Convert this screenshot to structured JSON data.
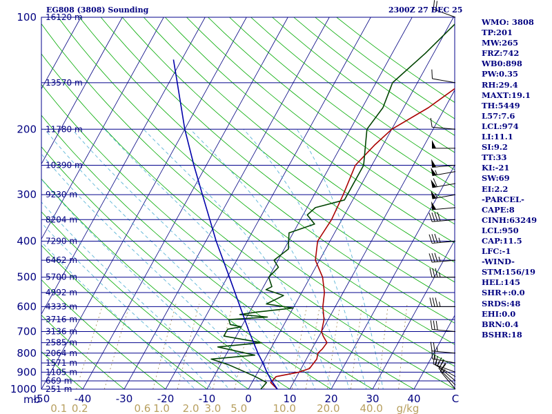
{
  "header": {
    "station_label": "EG808 (3808) Sounding",
    "valid_time": "2300Z 27 DEC 25"
  },
  "indices": [
    "WMO: 3808",
    "TP:201",
    "MW:265",
    "FRZ:742",
    "WB0:898",
    "PW:0.35",
    "RH:29.4",
    "MAXT:19.1",
    "TH:5449",
    "L57:7.6",
    "LCL:974",
    "LI:11.1",
    "SI:9.2",
    "TT:33",
    "KI:-21",
    "SW:69",
    "EI:2.2",
    "-PARCEL-",
    "CAPE:8",
    "CINH:63249",
    "LCL:950",
    "CAP:11.5",
    "LFC:-1",
    "-WIND-",
    "STM:156/19",
    "HEL:145",
    "SHR+:0.0",
    "SRDS:48",
    "EHI:0.0",
    "BRN:0.4",
    "BSHR:18"
  ],
  "colors": {
    "isobar": "#00008b",
    "isotherm": "#000080",
    "dry_adiabat": "#00aa00",
    "moist_adiabat": "#5ab4d6",
    "mixing_ratio": "#a08850",
    "temperature": "#aa0000",
    "dewpoint": "#004400",
    "parcel": "#0000aa",
    "text_blue": "#000080",
    "mixing_label": "#b8a060"
  },
  "chart_data": {
    "type": "line",
    "title": "EG808 (3808) Sounding",
    "xlabel": "C",
    "ylabel": "mb",
    "xlim": [
      -50,
      50
    ],
    "ylim": [
      1000,
      100
    ],
    "y_scale": "log",
    "pressure_levels": [
      {
        "p": 100,
        "label": "100",
        "height": "16120 m"
      },
      {
        "p": 150,
        "label": "",
        "height": "13570 m"
      },
      {
        "p": 200,
        "label": "200",
        "height": "11780 m"
      },
      {
        "p": 250,
        "label": "",
        "height": "10390 m"
      },
      {
        "p": 300,
        "label": "300",
        "height": "9230 m"
      },
      {
        "p": 350,
        "label": "",
        "height": "8204 m"
      },
      {
        "p": 400,
        "label": "400",
        "height": "7290 m"
      },
      {
        "p": 450,
        "label": "",
        "height": "6462 m"
      },
      {
        "p": 500,
        "label": "500",
        "height": "5700 m"
      },
      {
        "p": 550,
        "label": "",
        "height": "4992 m"
      },
      {
        "p": 600,
        "label": "600",
        "height": "4333 m"
      },
      {
        "p": 650,
        "label": "",
        "height": "3716 m"
      },
      {
        "p": 700,
        "label": "700",
        "height": "3136 m"
      },
      {
        "p": 750,
        "label": "",
        "height": "2585 m"
      },
      {
        "p": 800,
        "label": "800",
        "height": "2064 m"
      },
      {
        "p": 850,
        "label": "",
        "height": "1571 m"
      },
      {
        "p": 900,
        "label": "900",
        "height": "1105 m"
      },
      {
        "p": 950,
        "label": "",
        "height": "669 m"
      },
      {
        "p": 1000,
        "label": "1000",
        "height": "251 m"
      }
    ],
    "temperature_ticks": [
      {
        "t": -50,
        "label": "-50"
      },
      {
        "t": -40,
        "label": "-40"
      },
      {
        "t": -30,
        "label": "-30"
      },
      {
        "t": -20,
        "label": "-20"
      },
      {
        "t": -10,
        "label": "-10"
      },
      {
        "t": 0,
        "label": "0"
      },
      {
        "t": 10,
        "label": "10"
      },
      {
        "t": 20,
        "label": "20"
      },
      {
        "t": 30,
        "label": "30"
      },
      {
        "t": 40,
        "label": "40"
      },
      {
        "t": 50,
        "label": "C"
      }
    ],
    "mixing_ratio_labels": [
      {
        "t": -45.8,
        "label": "0.1"
      },
      {
        "t": -40.7,
        "label": "0.2"
      },
      {
        "t": -25.6,
        "label": "0.6"
      },
      {
        "t": -21,
        "label": "1.0"
      },
      {
        "t": -13.9,
        "label": "2.0"
      },
      {
        "t": -8.6,
        "label": "3.0"
      },
      {
        "t": -2.3,
        "label": "5.0"
      },
      {
        "t": 8.7,
        "label": "10.0"
      },
      {
        "t": 19.3,
        "label": "20.0"
      },
      {
        "t": 29.7,
        "label": "40.0"
      },
      {
        "t": 38.5,
        "label": "g/kg"
      }
    ],
    "series": [
      {
        "name": "temperature",
        "points": [
          [
            1000,
            7
          ],
          [
            960,
            4.5
          ],
          [
            925,
            5
          ],
          [
            900,
            10
          ],
          [
            880,
            12
          ],
          [
            830,
            12.5
          ],
          [
            800,
            12
          ],
          [
            780,
            12.5
          ],
          [
            750,
            12.8
          ],
          [
            720,
            11
          ],
          [
            700,
            10
          ],
          [
            650,
            9
          ],
          [
            600,
            7
          ],
          [
            550,
            5.5
          ],
          [
            500,
            3
          ],
          [
            450,
            -1
          ],
          [
            400,
            -3
          ],
          [
            350,
            -2.5
          ],
          [
            300,
            -3
          ],
          [
            250,
            -4
          ],
          [
            220,
            -2
          ],
          [
            200,
            0
          ],
          [
            175,
            6
          ],
          [
            150,
            11
          ],
          [
            125,
            16
          ],
          [
            100,
            20
          ]
        ]
      },
      {
        "name": "dewpoint",
        "points": [
          [
            1000,
            3
          ],
          [
            960,
            3.5
          ],
          [
            925,
            0
          ],
          [
            900,
            -3
          ],
          [
            860,
            -8
          ],
          [
            830,
            -13
          ],
          [
            810,
            -3
          ],
          [
            770,
            -13
          ],
          [
            750,
            -3
          ],
          [
            720,
            -13
          ],
          [
            690,
            -13
          ],
          [
            680,
            -10
          ],
          [
            670,
            -13
          ],
          [
            650,
            -14
          ],
          [
            640,
            -5
          ],
          [
            630,
            -12
          ],
          [
            620,
            -8
          ],
          [
            605,
            0
          ],
          [
            590,
            -7
          ],
          [
            560,
            -4
          ],
          [
            540,
            -9
          ],
          [
            530,
            -8
          ],
          [
            500,
            -10
          ],
          [
            470,
            -9
          ],
          [
            450,
            -11
          ],
          [
            420,
            -9
          ],
          [
            400,
            -10
          ],
          [
            380,
            -11
          ],
          [
            360,
            -6
          ],
          [
            340,
            -9
          ],
          [
            325,
            -8
          ],
          [
            310,
            -2
          ],
          [
            290,
            -2
          ],
          [
            250,
            -2
          ],
          [
            200,
            -6
          ],
          [
            175,
            -5
          ],
          [
            150,
            -6
          ],
          [
            125,
            -2
          ],
          [
            100,
            2
          ]
        ]
      },
      {
        "name": "parcel",
        "points": [
          [
            1000,
            7
          ],
          [
            950,
            4.5
          ],
          [
            900,
            2.2
          ],
          [
            850,
            0
          ],
          [
            800,
            -2.5
          ],
          [
            700,
            -7.5
          ],
          [
            600,
            -13
          ],
          [
            500,
            -19.5
          ],
          [
            400,
            -27.5
          ],
          [
            300,
            -37
          ],
          [
            250,
            -43
          ],
          [
            200,
            -50
          ],
          [
            150,
            -58
          ],
          [
            130,
            -62
          ]
        ]
      }
    ],
    "wind_barbs": [
      {
        "p": 1000,
        "dir": 320,
        "spd": 15
      },
      {
        "p": 975,
        "dir": 315,
        "spd": 20
      },
      {
        "p": 950,
        "dir": 310,
        "spd": 20
      },
      {
        "p": 925,
        "dir": 300,
        "spd": 15
      },
      {
        "p": 900,
        "dir": 290,
        "spd": 15
      },
      {
        "p": 850,
        "dir": 280,
        "spd": 20
      },
      {
        "p": 800,
        "dir": 275,
        "spd": 25
      },
      {
        "p": 700,
        "dir": 275,
        "spd": 30
      },
      {
        "p": 600,
        "dir": 270,
        "spd": 35
      },
      {
        "p": 500,
        "dir": 270,
        "spd": 35
      },
      {
        "p": 450,
        "dir": 265,
        "spd": 35
      },
      {
        "p": 400,
        "dir": 265,
        "spd": 35
      },
      {
        "p": 350,
        "dir": 265,
        "spd": 40
      },
      {
        "p": 325,
        "dir": 265,
        "spd": 50
      },
      {
        "p": 300,
        "dir": 260,
        "spd": 55
      },
      {
        "p": 280,
        "dir": 260,
        "spd": 60
      },
      {
        "p": 260,
        "dir": 260,
        "spd": 55
      },
      {
        "p": 250,
        "dir": 265,
        "spd": 50
      },
      {
        "p": 225,
        "dir": 270,
        "spd": 50
      },
      {
        "p": 200,
        "dir": 275,
        "spd": 10
      },
      {
        "p": 150,
        "dir": 280,
        "spd": 10
      },
      {
        "p": 100,
        "dir": 290,
        "spd": 20
      }
    ],
    "grid": true,
    "legend": "none"
  }
}
